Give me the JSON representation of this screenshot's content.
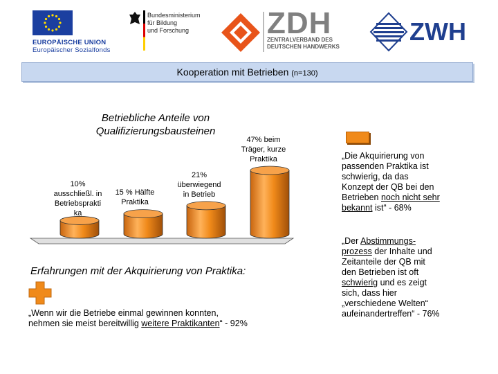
{
  "logos": {
    "eu_line1": "EUROPÄISCHE UNION",
    "eu_line2": "Europäischer Sozialfonds",
    "bmbf_line1": "Bundesministerium",
    "bmbf_line2": "für Bildung",
    "bmbf_line3": "und Forschung",
    "zdh_name": "ZDH",
    "zdh_line1": "ZENTRALVERBAND DES",
    "zdh_line2": "DEUTSCHEN HANDWERKS",
    "zwh_name": "ZWH"
  },
  "header": {
    "title": "Kooperation mit Betrieben",
    "sample": "(n=130)"
  },
  "chart_data": {
    "type": "bar",
    "title": "Betriebliche Anteile von Qualifizierungsbausteinen",
    "categories": [
      "ausschließl. in Betriebspraktika",
      "Hälfte Praktika",
      "überwiegend in Betrieb",
      "beim Träger, kurze Praktika"
    ],
    "values": [
      10,
      15,
      21,
      47
    ],
    "labels": [
      {
        "line1": "10%",
        "line2": "ausschließl. in",
        "line3": "Betriebsprakti",
        "line4": "ka"
      },
      {
        "line1": "15 % Hälfte",
        "line2": "Praktika"
      },
      {
        "line1": "21%",
        "line2": "überwiegend",
        "line3": "in Betrieb"
      },
      {
        "line1": "47% beim",
        "line2": "Träger, kurze",
        "line3": "Praktika"
      }
    ],
    "bar_color": "#f08a1a"
  },
  "right_quote_1": {
    "line1": "„Die Akquirierung von",
    "line2": "passenden Praktika ist",
    "line3": "schwierig, da das",
    "line4": "Konzept der QB bei den",
    "line5_pre": "Betrieben ",
    "line5_u": "noch nicht sehr",
    "line6_u": "bekannt",
    "line6_post": " ist“ - 68%"
  },
  "right_quote_2": {
    "line1_pre": "„Der ",
    "line1_u": "Abstimmungs-",
    "line2_u": "prozess",
    "line2_post": " der Inhalte und",
    "line3": "Zeitanteile der QB mit",
    "line4": "den Betrieben ist oft",
    "line5_u": "schwierig",
    "line5_post": " und es zeigt",
    "line6": "sich, dass hier",
    "line7": "„verschiedene Welten“",
    "line8": "aufeinandertreffen“ - 76%"
  },
  "experience": {
    "title": "Erfahrungen mit der Akquirierung von Praktika:",
    "line1": "„Wenn wir die Betriebe einmal gewinnen konnten,",
    "line2_pre": "nehmen sie meist bereitwillig ",
    "line2_u": "weitere Praktikanten",
    "line2_post": "“ - 92%"
  },
  "colors": {
    "accent_orange": "#f08a1a",
    "title_bar": "#c8d8f0"
  }
}
